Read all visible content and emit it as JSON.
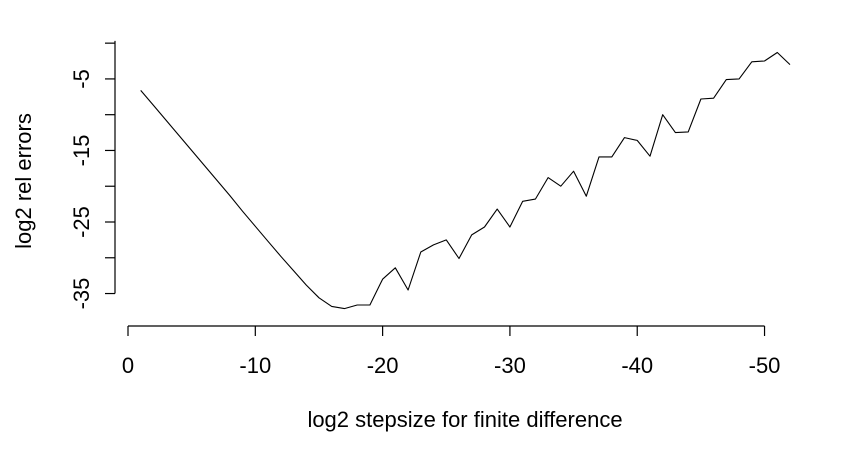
{
  "chart_data": {
    "type": "line",
    "title": "",
    "xlabel": "log2 stepsize for finite difference",
    "ylabel": "log2 rel errors",
    "x_reversed": true,
    "xlim": [
      0,
      -52
    ],
    "ylim": [
      -38,
      1
    ],
    "x_ticks": [
      0,
      -10,
      -20,
      -30,
      -40,
      -50
    ],
    "x_tick_labels": [
      "0",
      "-10",
      "-20",
      "-30",
      "-40",
      "-50"
    ],
    "y_ticks": [
      -5,
      -15,
      -25,
      -35
    ],
    "y_tick_labels": [
      "-5",
      "-15",
      "-25",
      "-35"
    ],
    "grid": false,
    "legend": "none",
    "line_color": "#000000",
    "series": [
      {
        "x": [
          -1,
          -2,
          -3,
          -4,
          -5,
          -6,
          -7,
          -8,
          -9,
          -10,
          -11,
          -12,
          -13,
          -14,
          -15,
          -16,
          -17,
          -18,
          -19,
          -20,
          -21,
          -22,
          -23,
          -24,
          -25,
          -26,
          -27,
          -28,
          -29,
          -30,
          -31,
          -32,
          -33,
          -34,
          -35,
          -36,
          -37,
          -38,
          -39,
          -40,
          -41,
          -42,
          -43,
          -44,
          -45,
          -46,
          -47,
          -48,
          -49,
          -50,
          -51,
          -52
        ],
        "values": [
          -6.6,
          -8.7,
          -10.8,
          -12.9,
          -15.0,
          -17.1,
          -19.2,
          -21.3,
          -23.5,
          -25.6,
          -27.7,
          -29.8,
          -31.8,
          -33.8,
          -35.6,
          -36.8,
          -37.1,
          -36.6,
          -36.6,
          -33.0,
          -31.4,
          -34.5,
          -29.2,
          -28.2,
          -27.5,
          -30.1,
          -26.8,
          -25.7,
          -23.2,
          -25.7,
          -22.1,
          -21.8,
          -18.8,
          -20.0,
          -17.9,
          -21.4,
          -15.9,
          -15.9,
          -13.2,
          -13.6,
          -15.8,
          -10.0,
          -12.5,
          -12.4,
          -7.8,
          -7.7,
          -5.1,
          -5.0,
          -2.6,
          -2.5,
          -1.3,
          -3.0
        ]
      }
    ]
  }
}
